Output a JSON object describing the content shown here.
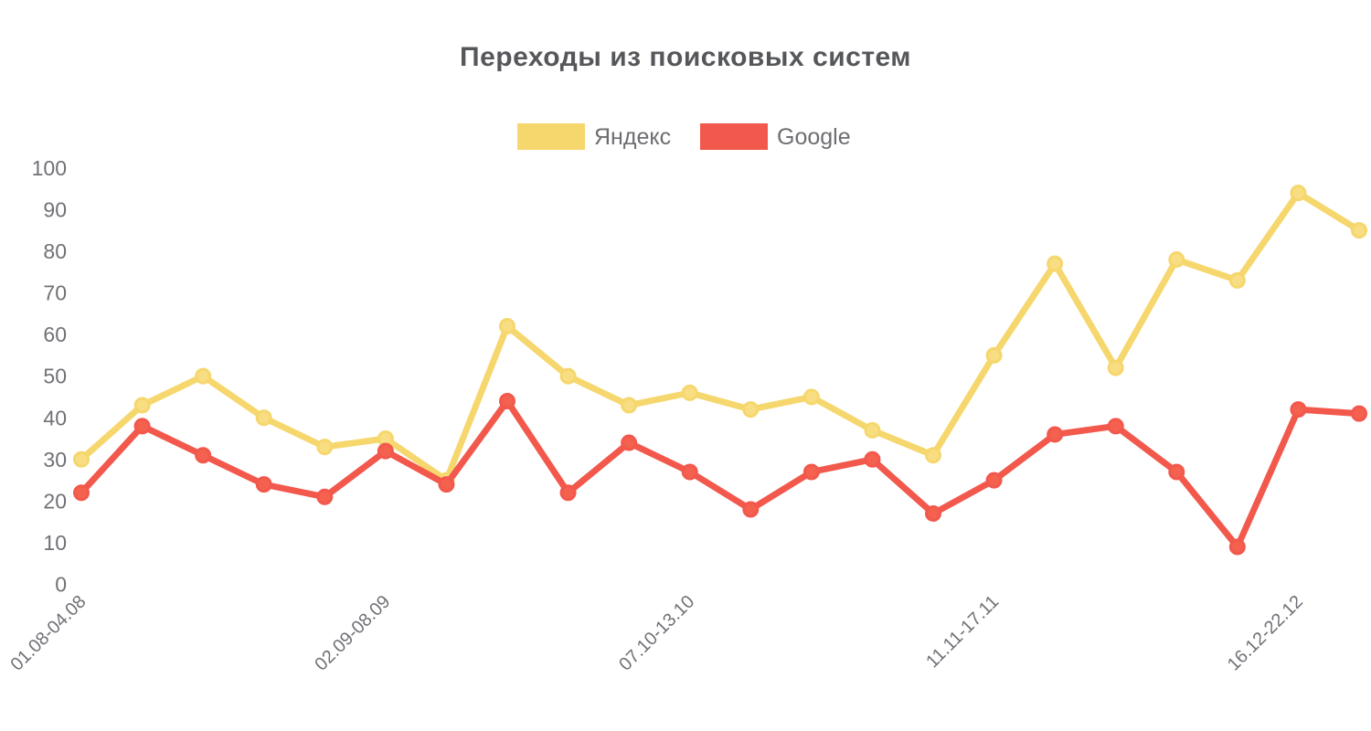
{
  "title": "Переходы из поисковых систем",
  "colors": {
    "yandex": "#F6D76D",
    "yandex_marker_fill": "#F8DD82",
    "google": "#F2584C",
    "google_marker_fill": "#F4614F",
    "title_text": "#56575B",
    "axis_text": "#707176",
    "legend_text": "#6D6E71",
    "background": "#FFFFFF"
  },
  "legend": [
    {
      "label": "Яндекс",
      "color_key": "yandex"
    },
    {
      "label": "Google",
      "color_key": "google"
    }
  ],
  "chart_data": {
    "type": "line",
    "title": "Переходы из поисковых систем",
    "xlabel": "",
    "ylabel": "",
    "ylim": [
      0,
      100
    ],
    "y_ticks": [
      0,
      10,
      20,
      30,
      40,
      50,
      60,
      70,
      80,
      90,
      100
    ],
    "grid": false,
    "legend_position": "top-center",
    "marker": "circle",
    "n_points": 22,
    "x_ticks": [
      {
        "index": 0,
        "label": "01.08-04.08"
      },
      {
        "index": 5,
        "label": "02.09-08.09"
      },
      {
        "index": 10,
        "label": "07.10-13.10"
      },
      {
        "index": 15,
        "label": "11.11-17.11"
      },
      {
        "index": 20,
        "label": "16.12-22.12"
      }
    ],
    "series": [
      {
        "id": "yandex",
        "name": "Яндекс",
        "color": "#F6D76D",
        "marker_fill": "#F8DD82",
        "values": [
          30,
          43,
          50,
          40,
          33,
          35,
          25,
          62,
          50,
          43,
          46,
          42,
          45,
          37,
          31,
          55,
          77,
          52,
          78,
          73,
          94,
          85
        ]
      },
      {
        "id": "google",
        "name": "Google",
        "color": "#F2584C",
        "marker_fill": "#F4614F",
        "values": [
          22,
          38,
          31,
          24,
          21,
          32,
          24,
          44,
          22,
          34,
          27,
          18,
          27,
          30,
          17,
          25,
          36,
          38,
          27,
          9,
          42,
          41
        ]
      }
    ]
  }
}
